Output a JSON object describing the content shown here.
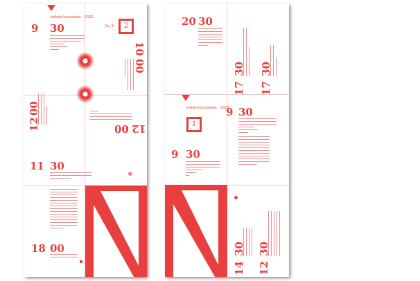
{
  "left_page": {
    "header": "setkání/encounter · 2013",
    "box_number": "2",
    "box_label": "Sv. 6.",
    "times": [
      {
        "h": "9",
        "m": "30"
      },
      {
        "h": "10",
        "m": "00"
      },
      {
        "h": "12",
        "m": "00"
      },
      {
        "h": "12",
        "m": "00"
      },
      {
        "h": "11",
        "m": "30"
      },
      {
        "h": "18",
        "m": "00"
      }
    ]
  },
  "right_page": {
    "header": "setkání/encounter · 2013",
    "box_number": "1",
    "times": [
      {
        "h": "20",
        "m": "30"
      },
      {
        "h": "17",
        "m": "30"
      },
      {
        "h": "17",
        "m": "30"
      },
      {
        "h": "9",
        "m": "30"
      },
      {
        "h": "9",
        "m": "30"
      },
      {
        "h": "14",
        "m": "30"
      },
      {
        "h": "12",
        "m": "30"
      }
    ]
  },
  "colors": {
    "accent": "#e8403f"
  }
}
